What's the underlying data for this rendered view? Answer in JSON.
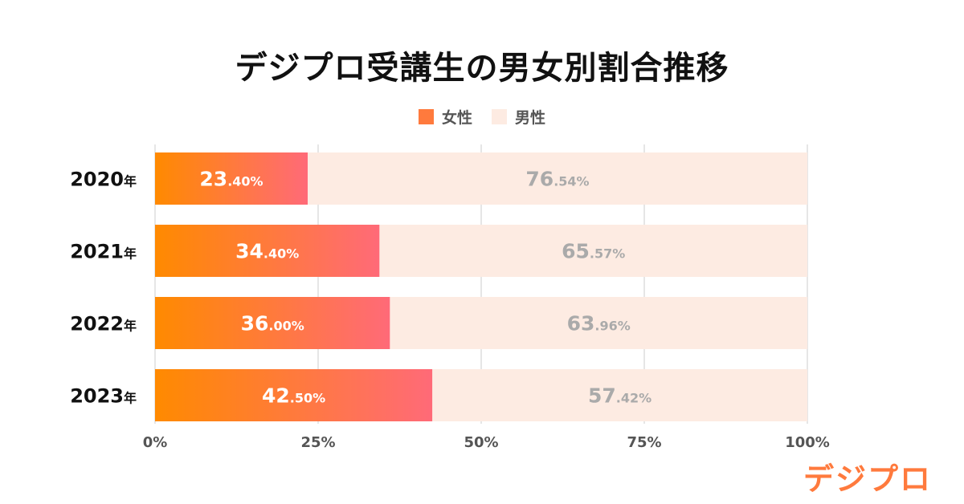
{
  "title": "デジプロ受講生の男女別割合推移",
  "legend": [
    {
      "label": "女性",
      "color": "#ff7a3d"
    },
    {
      "label": "男性",
      "color": "#fdebe2"
    }
  ],
  "colors": {
    "female_start": "#ff8a00",
    "female_end": "#ff6a78",
    "male": "#fdebe2",
    "male_label": "#aaaaaa",
    "female_label": "#ffffff",
    "grid": "#d6d6d6"
  },
  "chart_data": {
    "type": "bar",
    "orientation": "horizontal",
    "stacked": true,
    "title": "デジプロ受講生の男女別割合推移",
    "categories": [
      "2020年",
      "2021年",
      "2022年",
      "2023年"
    ],
    "series": [
      {
        "name": "女性",
        "values": [
          23.4,
          34.4,
          36.0,
          42.5
        ],
        "labels": [
          [
            "23",
            ".40%"
          ],
          [
            "34",
            ".40%"
          ],
          [
            "36",
            ".00%"
          ],
          [
            "42",
            ".50%"
          ]
        ]
      },
      {
        "name": "男性",
        "values": [
          76.54,
          65.57,
          63.96,
          57.42
        ],
        "labels": [
          [
            "76",
            ".54%"
          ],
          [
            "65",
            ".57%"
          ],
          [
            "63",
            ".96%"
          ],
          [
            "57",
            ".42%"
          ]
        ]
      }
    ],
    "xlim": [
      0,
      100
    ],
    "xticks": [
      0,
      25,
      50,
      75,
      100
    ],
    "xtick_labels": [
      "0%",
      "25%",
      "50%",
      "75%",
      "100%"
    ],
    "grid": true,
    "legend_position": "top-center"
  },
  "logo": {
    "text": "デジプロ"
  }
}
